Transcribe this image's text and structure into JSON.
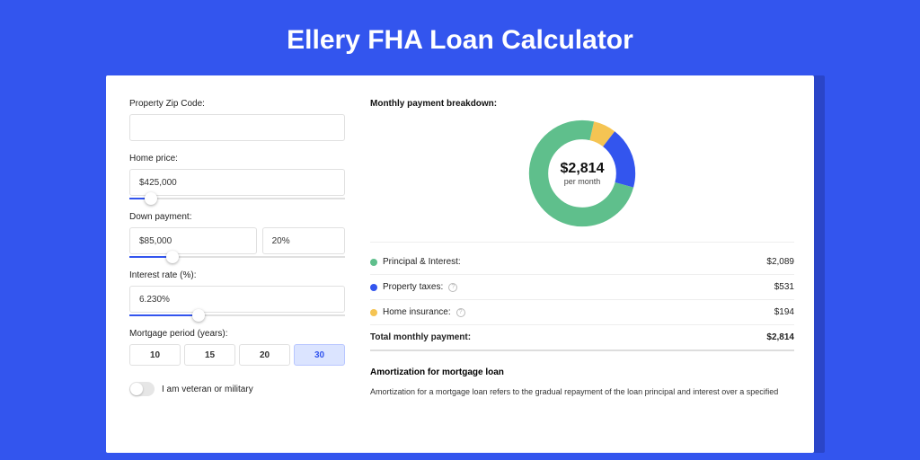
{
  "page": {
    "title": "Ellery FHA Loan Calculator",
    "bg_color": "#3355ee"
  },
  "inputs": {
    "zip_label": "Property Zip Code:",
    "zip_value": "",
    "home_price_label": "Home price:",
    "home_price_value": "$425,000",
    "home_price_slider_pct": 10,
    "down_payment_label": "Down payment:",
    "down_payment_value": "$85,000",
    "down_payment_pct_value": "20%",
    "down_payment_slider_pct": 20,
    "interest_label": "Interest rate (%):",
    "interest_value": "6.230%",
    "interest_slider_pct": 32,
    "period_label": "Mortgage period (years):",
    "period_options": [
      "10",
      "15",
      "20",
      "30"
    ],
    "period_selected": "30",
    "veteran_label": "I am veteran or military",
    "veteran_on": false
  },
  "breakdown": {
    "title": "Monthly payment breakdown:",
    "center_amount": "$2,814",
    "center_sub": "per month",
    "donut_colors": {
      "principal": "#5fbf8c",
      "taxes": "#3355ee",
      "insurance": "#f5c453",
      "track": "#f0f0f0"
    },
    "donut_slices": {
      "principal_pct": 74.2,
      "taxes_pct": 18.9,
      "insurance_pct": 6.9
    },
    "rows": [
      {
        "label": "Principal & Interest:",
        "color": "#5fbf8c",
        "info": false,
        "value": "$2,089"
      },
      {
        "label": "Property taxes:",
        "color": "#3355ee",
        "info": true,
        "value": "$531"
      },
      {
        "label": "Home insurance:",
        "color": "#f5c453",
        "info": true,
        "value": "$194"
      }
    ],
    "total_label": "Total monthly payment:",
    "total_value": "$2,814"
  },
  "amortization": {
    "title": "Amortization for mortgage loan",
    "body": "Amortization for a mortgage loan refers to the gradual repayment of the loan principal and interest over a specified"
  }
}
